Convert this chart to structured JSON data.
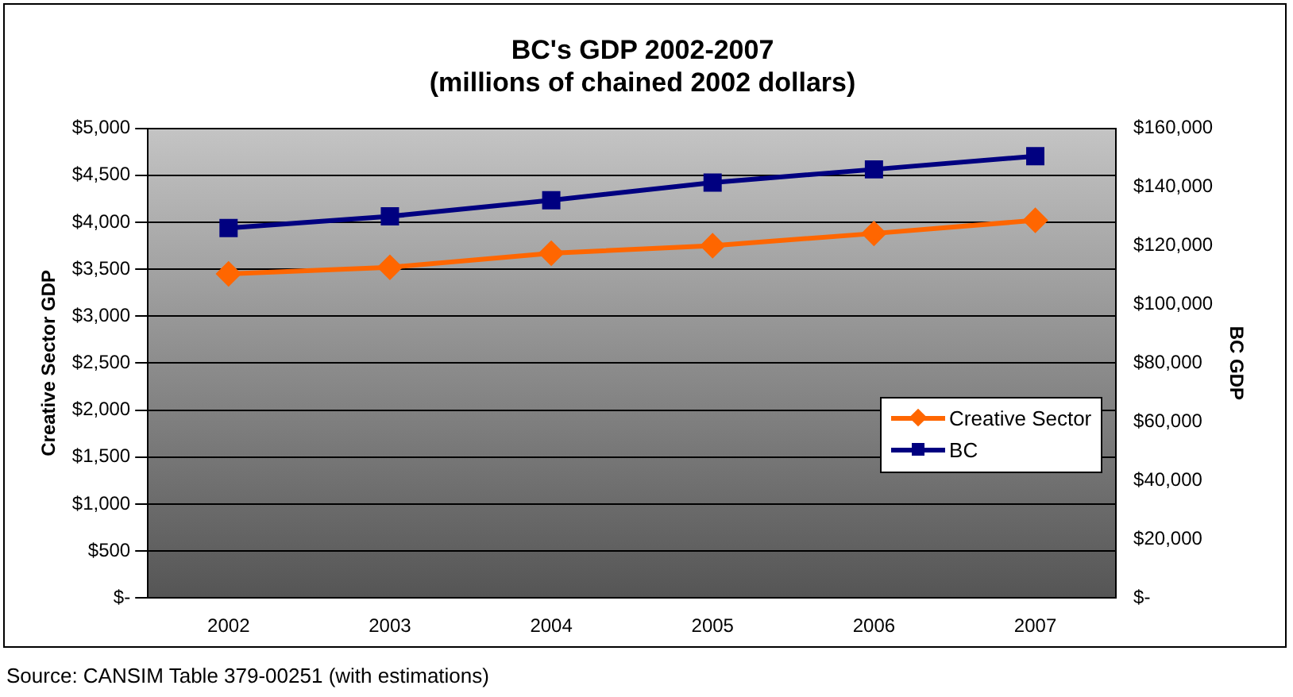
{
  "chart_data": {
    "type": "line",
    "title": "BC's GDP 2002-2007\n(millions of chained 2002 dollars)",
    "ylabel": "Creative Sector GDP",
    "y2label": "BC GDP",
    "categories": [
      "2002",
      "2003",
      "2004",
      "2005",
      "2006",
      "2007"
    ],
    "series": [
      {
        "name": "Creative Sector",
        "color": "#ff6600",
        "marker": "diamond",
        "values": [
          3450,
          3520,
          3670,
          3750,
          3880,
          4020
        ]
      },
      {
        "name": "BC",
        "color": "#000080",
        "marker": "square",
        "axis": "y2",
        "values": [
          126000,
          130000,
          135500,
          141500,
          146000,
          150500
        ]
      }
    ],
    "ylim": [
      0,
      5000
    ],
    "yticks": [
      {
        "value": 0,
        "label": "$-"
      },
      {
        "value": 500,
        "label": "$500"
      },
      {
        "value": 1000,
        "label": "$1,000"
      },
      {
        "value": 1500,
        "label": "$1,500"
      },
      {
        "value": 2000,
        "label": "$2,000"
      },
      {
        "value": 2500,
        "label": "$2,500"
      },
      {
        "value": 3000,
        "label": "$3,000"
      },
      {
        "value": 3500,
        "label": "$3,500"
      },
      {
        "value": 4000,
        "label": "$4,000"
      },
      {
        "value": 4500,
        "label": "$4,500"
      },
      {
        "value": 5000,
        "label": "$5,000"
      }
    ],
    "y2lim": [
      0,
      160000
    ],
    "y2ticks": [
      {
        "value": 0,
        "label": "$-"
      },
      {
        "value": 20000,
        "label": "$20,000"
      },
      {
        "value": 40000,
        "label": "$40,000"
      },
      {
        "value": 60000,
        "label": "$60,000"
      },
      {
        "value": 80000,
        "label": "$80,000"
      },
      {
        "value": 100000,
        "label": "$100,000"
      },
      {
        "value": 120000,
        "label": "$120,000"
      },
      {
        "value": 140000,
        "label": "$140,000"
      },
      {
        "value": 160000,
        "label": "$160,000"
      }
    ],
    "grid": "y",
    "legend": "right",
    "line_style": "solid",
    "annotations": [
      "Source: CANSIM Table 379-00251 (with estimations)"
    ]
  }
}
